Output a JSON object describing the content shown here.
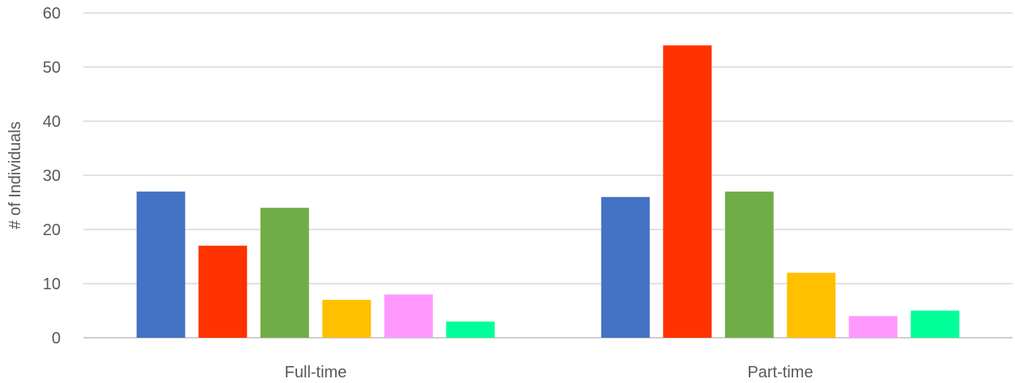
{
  "chart_data": {
    "type": "bar",
    "title": "",
    "xlabel": "",
    "ylabel": "# of Individuals",
    "ylim": [
      0,
      60
    ],
    "yticks": [
      0,
      10,
      20,
      30,
      40,
      50,
      60
    ],
    "grid": true,
    "legend": "none",
    "categories": [
      "Full-time",
      "Part-time"
    ],
    "series": [
      {
        "color": "#4472C4",
        "values": [
          27,
          26
        ]
      },
      {
        "color": "#FF3300",
        "values": [
          17,
          54
        ]
      },
      {
        "color": "#70AD47",
        "values": [
          24,
          27
        ]
      },
      {
        "color": "#FFC000",
        "values": [
          7,
          12
        ]
      },
      {
        "color": "#FF99FF",
        "values": [
          8,
          4
        ]
      },
      {
        "color": "#00FF99",
        "values": [
          3,
          5
        ]
      }
    ]
  }
}
